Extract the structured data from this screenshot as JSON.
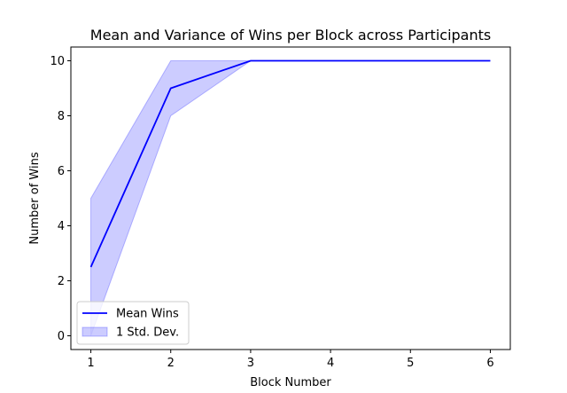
{
  "chart_data": {
    "type": "line",
    "title": "Mean and Variance of Wins per Block across Participants",
    "xlabel": "Block Number",
    "ylabel": "Number of Wins",
    "x": [
      1,
      2,
      3,
      4,
      5,
      6
    ],
    "xticks": [
      "1",
      "2",
      "3",
      "4",
      "5",
      "6"
    ],
    "yticks": [
      "0",
      "2",
      "4",
      "6",
      "8",
      "10"
    ],
    "xlim": [
      0.75,
      6.25
    ],
    "ylim": [
      -0.5,
      10.5
    ],
    "series": [
      {
        "name": "Mean Wins",
        "kind": "line",
        "color": "#0000ff",
        "values": [
          2.5,
          9,
          10,
          10,
          10,
          10
        ]
      },
      {
        "name": "1 Std. Dev.",
        "kind": "band",
        "color": "#0000ff",
        "fill_color": "#ccccff",
        "lower": [
          0,
          8,
          10,
          10,
          10,
          10
        ],
        "upper": [
          5,
          10,
          10,
          10,
          10,
          10
        ]
      }
    ],
    "legend": {
      "placement": "lower-left",
      "entries": [
        "Mean Wins",
        "1 Std. Dev."
      ]
    },
    "grid": false
  }
}
